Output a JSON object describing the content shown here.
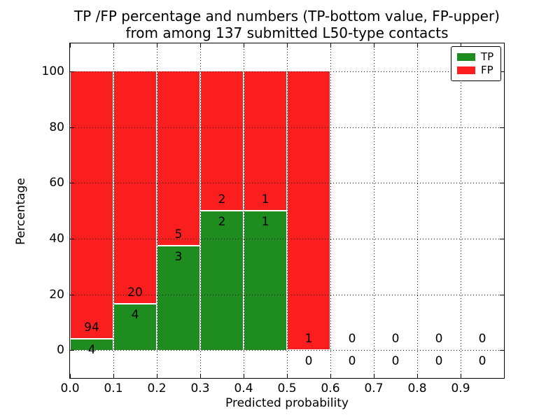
{
  "title": {
    "line1": "TP /FP percentage and numbers (TP-bottom value, FP-upper)",
    "line2": "from among 137 submitted L50-type contacts"
  },
  "axes": {
    "xlabel": "Predicted probability",
    "ylabel": "Percentage"
  },
  "legend": {
    "items": [
      {
        "label": "TP",
        "color": "#1e8c1e"
      },
      {
        "label": "FP",
        "color": "#fa1e1e"
      }
    ]
  },
  "colors": {
    "tp": "#1e8c1e",
    "fp": "#fa1e1e",
    "grid": "#000000",
    "bar_edge": "#ffffff"
  },
  "chart_data": {
    "type": "bar",
    "stacked": true,
    "title": "TP /FP percentage and numbers (TP-bottom value, FP-upper) from among 137 submitted L50-type contacts",
    "xlabel": "Predicted probability",
    "ylabel": "Percentage",
    "total_contacts": 137,
    "xlim": [
      0.0,
      1.0
    ],
    "ylim": [
      -10,
      110
    ],
    "xticks": [
      "0.0",
      "0.1",
      "0.2",
      "0.3",
      "0.4",
      "0.5",
      "0.6",
      "0.7",
      "0.8",
      "0.9"
    ],
    "yticks": [
      "0",
      "20",
      "40",
      "60",
      "80",
      "100"
    ],
    "grid": true,
    "grid_style": "dotted",
    "legend_position": "upper right",
    "annotation_rule": "FP count above TP/FP boundary, TP count below boundary",
    "bin_width": 0.1,
    "series": [
      {
        "name": "TP",
        "values": [
          4,
          4,
          3,
          2,
          1,
          0,
          0,
          0,
          0,
          0
        ]
      },
      {
        "name": "FP",
        "values": [
          94,
          20,
          5,
          2,
          1,
          1,
          0,
          0,
          0,
          0
        ]
      }
    ],
    "bins": [
      {
        "x0": 0.0,
        "x1": 0.1,
        "tp": 4,
        "fp": 94
      },
      {
        "x0": 0.1,
        "x1": 0.2,
        "tp": 4,
        "fp": 20
      },
      {
        "x0": 0.2,
        "x1": 0.3,
        "tp": 3,
        "fp": 5
      },
      {
        "x0": 0.3,
        "x1": 0.4,
        "tp": 2,
        "fp": 2
      },
      {
        "x0": 0.4,
        "x1": 0.5,
        "tp": 1,
        "fp": 1
      },
      {
        "x0": 0.5,
        "x1": 0.6,
        "tp": 0,
        "fp": 1
      },
      {
        "x0": 0.6,
        "x1": 0.7,
        "tp": 0,
        "fp": 0
      },
      {
        "x0": 0.7,
        "x1": 0.8,
        "tp": 0,
        "fp": 0
      },
      {
        "x0": 0.8,
        "x1": 0.9,
        "tp": 0,
        "fp": 0
      },
      {
        "x0": 0.9,
        "x1": 1.0,
        "tp": 0,
        "fp": 0
      }
    ]
  }
}
